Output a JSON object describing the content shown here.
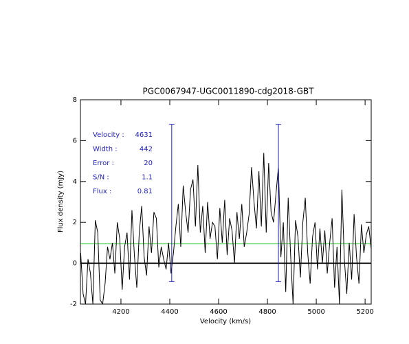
{
  "chart_data": {
    "type": "line",
    "title": "PGC0067947-UGC0011890-cdg2018-GBT",
    "xlabel": "Velocity (km/s)",
    "ylabel": "Flux density (mJy)",
    "xlim": [
      4034,
      5225
    ],
    "ylim": [
      -2,
      8
    ],
    "xticks": [
      4200,
      4400,
      4600,
      4800,
      5000,
      5200
    ],
    "yticks": [
      -2,
      0,
      2,
      4,
      6,
      8
    ],
    "color": "#000000",
    "x": [
      4035,
      4045,
      4055,
      4065,
      4075,
      4085,
      4095,
      4105,
      4115,
      4125,
      4135,
      4145,
      4155,
      4165,
      4175,
      4185,
      4195,
      4205,
      4215,
      4225,
      4235,
      4245,
      4255,
      4265,
      4275,
      4285,
      4295,
      4305,
      4315,
      4325,
      4335,
      4345,
      4355,
      4365,
      4375,
      4385,
      4395,
      4405,
      4415,
      4425,
      4435,
      4445,
      4455,
      4465,
      4475,
      4485,
      4495,
      4505,
      4515,
      4525,
      4535,
      4545,
      4555,
      4565,
      4575,
      4585,
      4595,
      4605,
      4615,
      4625,
      4635,
      4645,
      4655,
      4665,
      4675,
      4685,
      4695,
      4705,
      4715,
      4725,
      4735,
      4745,
      4755,
      4765,
      4775,
      4785,
      4795,
      4805,
      4815,
      4825,
      4835,
      4845,
      4855,
      4865,
      4875,
      4885,
      4895,
      4905,
      4915,
      4925,
      4935,
      4945,
      4955,
      4965,
      4975,
      4985,
      4995,
      5005,
      5015,
      5025,
      5035,
      5045,
      5055,
      5065,
      5075,
      5085,
      5095,
      5105,
      5115,
      5125,
      5135,
      5145,
      5155,
      5165,
      5175,
      5185,
      5195,
      5205,
      5215,
      5225
    ],
    "values": [
      0.5,
      -1.5,
      -2,
      0.2,
      -0.5,
      -2,
      2.1,
      1.5,
      -1.8,
      -2,
      -1,
      0.8,
      0.2,
      1,
      -0.5,
      2,
      1.2,
      -1.3,
      0.8,
      1.5,
      -0.8,
      2.6,
      0.4,
      -1.2,
      1.5,
      2.8,
      0.3,
      -0.6,
      1.8,
      0.5,
      2.5,
      2.2,
      -0.2,
      0.8,
      0.2,
      -0.3,
      1,
      -0.5,
      0.5,
      1.8,
      2.9,
      0.8,
      3.8,
      2.5,
      1.5,
      3.6,
      4.1,
      1.8,
      4.8,
      1.5,
      2.8,
      0.5,
      3,
      1.2,
      2,
      1.8,
      0.2,
      2.7,
      1,
      3.1,
      0.4,
      2.2,
      1.6,
      0,
      2.5,
      1.2,
      2.9,
      0.8,
      1.5,
      2.4,
      4.7,
      3,
      1.7,
      4.5,
      1.8,
      5.4,
      1.5,
      4.9,
      2.5,
      2,
      3.4,
      4.7,
      0.3,
      2,
      -1.4,
      3.2,
      0.4,
      -2,
      2.1,
      1.3,
      -0.7,
      2,
      3.2,
      0.5,
      -1,
      1.3,
      2,
      -0.3,
      1.7,
      0,
      1.6,
      -0.5,
      1,
      2.2,
      -1.2,
      0.8,
      -2,
      3.6,
      0.2,
      -1.5,
      1,
      -0.8,
      2.4,
      0.3,
      -1,
      1.9,
      0.5,
      1.4,
      1.8,
      0.7
    ],
    "markers": {
      "x": [
        4408,
        4845
      ],
      "y": [
        -0.9,
        6.8
      ],
      "color": "#2020c0"
    },
    "level": 0.95,
    "level_color": "#00c000",
    "annotation_color": "#2020c0",
    "annotations": [
      {
        "label": "Velocity :",
        "value": 4631
      },
      {
        "label": "Width :",
        "value": 442
      },
      {
        "label": "Error :",
        "value": 20
      },
      {
        "label": "S/N :",
        "value": 1.1
      },
      {
        "label": "Flux :",
        "value": 0.81
      }
    ]
  }
}
